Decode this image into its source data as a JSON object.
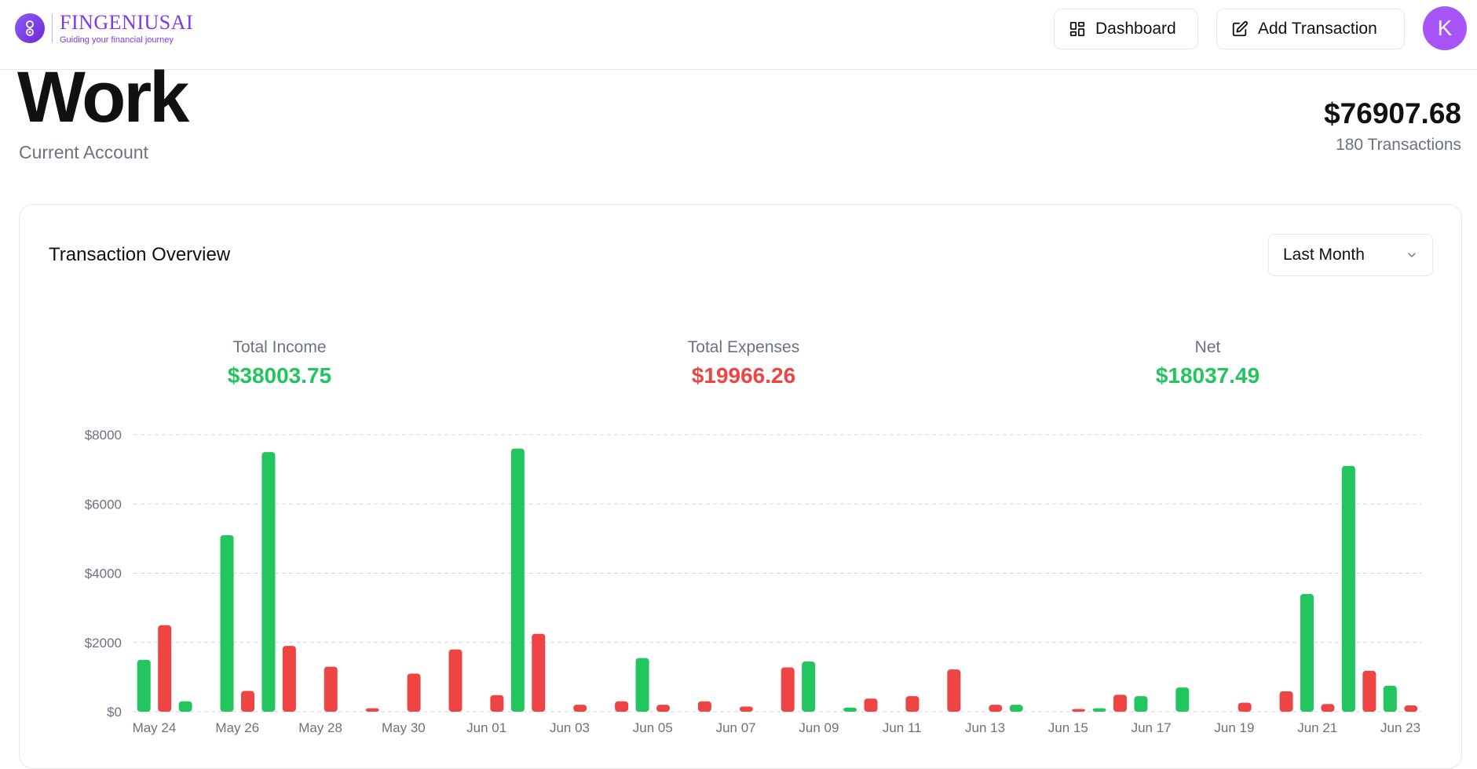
{
  "brand": {
    "name": "FINGENIUSAI",
    "tagline": "Guiding your financial journey"
  },
  "nav": {
    "dashboard_label": "Dashboard",
    "add_transaction_label": "Add Transaction",
    "avatar_initial": "K"
  },
  "account": {
    "name": "Work",
    "type": "Current Account",
    "balance": "$76907.68",
    "transactions": "180 Transactions"
  },
  "overview": {
    "title": "Transaction Overview",
    "period_selected": "Last Month",
    "income_label": "Total Income",
    "income_value": "$38003.75",
    "expenses_label": "Total Expenses",
    "expenses_value": "$19966.26",
    "net_label": "Net",
    "net_value": "$18037.49"
  },
  "colors": {
    "income": "#22c55e",
    "expense": "#ef4444",
    "accent": "#7c3aed"
  },
  "chart_data": {
    "type": "bar",
    "categories": [
      "May 24",
      "May 25",
      "May 26",
      "May 27",
      "May 28",
      "May 29",
      "May 30",
      "May 31",
      "Jun 01",
      "Jun 02",
      "Jun 03",
      "Jun 04",
      "Jun 05",
      "Jun 06",
      "Jun 07",
      "Jun 08",
      "Jun 09",
      "Jun 10",
      "Jun 11",
      "Jun 12",
      "Jun 13",
      "Jun 14",
      "Jun 15",
      "Jun 16",
      "Jun 17",
      "Jun 18",
      "Jun 19",
      "Jun 20",
      "Jun 21",
      "Jun 22",
      "Jun 23"
    ],
    "tick_labels": [
      "May 24",
      "May 26",
      "May 28",
      "May 30",
      "Jun 01",
      "Jun 03",
      "Jun 05",
      "Jun 07",
      "Jun 09",
      "Jun 11",
      "Jun 13",
      "Jun 15",
      "Jun 17",
      "Jun 19",
      "Jun 21",
      "Jun 23"
    ],
    "series": [
      {
        "key": "income",
        "values": [
          1500,
          300,
          5100,
          7500,
          0,
          0,
          0,
          0,
          0,
          7600,
          0,
          0,
          1550,
          0,
          0,
          0,
          1450,
          120,
          0,
          0,
          0,
          200,
          0,
          100,
          450,
          700,
          0,
          0,
          3400,
          7100,
          750
        ]
      },
      {
        "key": "expense",
        "values": [
          2500,
          0,
          600,
          1900,
          1300,
          100,
          1100,
          1800,
          480,
          2250,
          200,
          300,
          200,
          300,
          150,
          1280,
          0,
          380,
          450,
          1220,
          200,
          0,
          80,
          490,
          0,
          0,
          260,
          590,
          220,
          1180,
          180
        ]
      }
    ],
    "yticks": [
      "$0",
      "$2000",
      "$4000",
      "$6000",
      "$8000"
    ],
    "ylim": [
      0,
      8000
    ],
    "grid": true
  }
}
